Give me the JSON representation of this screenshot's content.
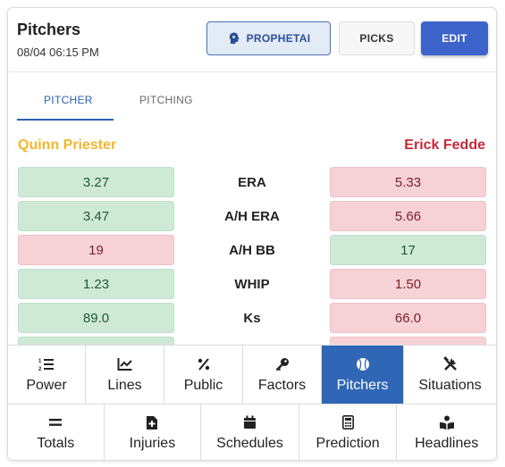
{
  "header": {
    "title": "Pitchers",
    "datetime": "08/04 06:15 PM",
    "buttons": {
      "prophetai": "PROPHETAI",
      "picks": "PICKS",
      "edit": "EDIT"
    }
  },
  "tabs": {
    "pitcher": "PITCHER",
    "pitching": "PITCHING",
    "active": "PITCHER"
  },
  "pitchers": {
    "left": "Quinn Priester",
    "right": "Erick Fedde"
  },
  "colors": {
    "left_name": "#f3b62a",
    "right_name": "#c32a39",
    "good": "#cfe9d7",
    "bad": "#f6d2d6",
    "accent": "#2f66b5"
  },
  "stats": [
    {
      "label": "ERA",
      "left": "3.27",
      "right": "5.33",
      "left_status": "good",
      "right_status": "bad"
    },
    {
      "label": "A/H ERA",
      "left": "3.47",
      "right": "5.66",
      "left_status": "good",
      "right_status": "bad"
    },
    {
      "label": "A/H BB",
      "left": "19",
      "right": "17",
      "left_status": "bad",
      "right_status": "good"
    },
    {
      "label": "WHIP",
      "left": "1.23",
      "right": "1.50",
      "left_status": "good",
      "right_status": "bad"
    },
    {
      "label": "Ks",
      "left": "89.0",
      "right": "66.0",
      "left_status": "good",
      "right_status": "bad"
    },
    {
      "label": "",
      "left": "",
      "right": "",
      "left_status": "good",
      "right_status": "bad"
    }
  ],
  "nav_row1": [
    {
      "label": "Power",
      "icon": "ordered-list-icon"
    },
    {
      "label": "Lines",
      "icon": "line-chart-icon"
    },
    {
      "label": "Public",
      "icon": "percent-icon"
    },
    {
      "label": "Factors",
      "icon": "key-icon"
    },
    {
      "label": "Pitchers",
      "icon": "baseball-icon",
      "active": true
    },
    {
      "label": "Situations",
      "icon": "tools-icon"
    }
  ],
  "nav_row2": [
    {
      "label": "Totals",
      "icon": "equals-icon"
    },
    {
      "label": "Injuries",
      "icon": "medical-file-icon"
    },
    {
      "label": "Schedules",
      "icon": "calendar-icon"
    },
    {
      "label": "Prediction",
      "icon": "calculator-icon"
    },
    {
      "label": "Headlines",
      "icon": "reader-icon"
    }
  ]
}
